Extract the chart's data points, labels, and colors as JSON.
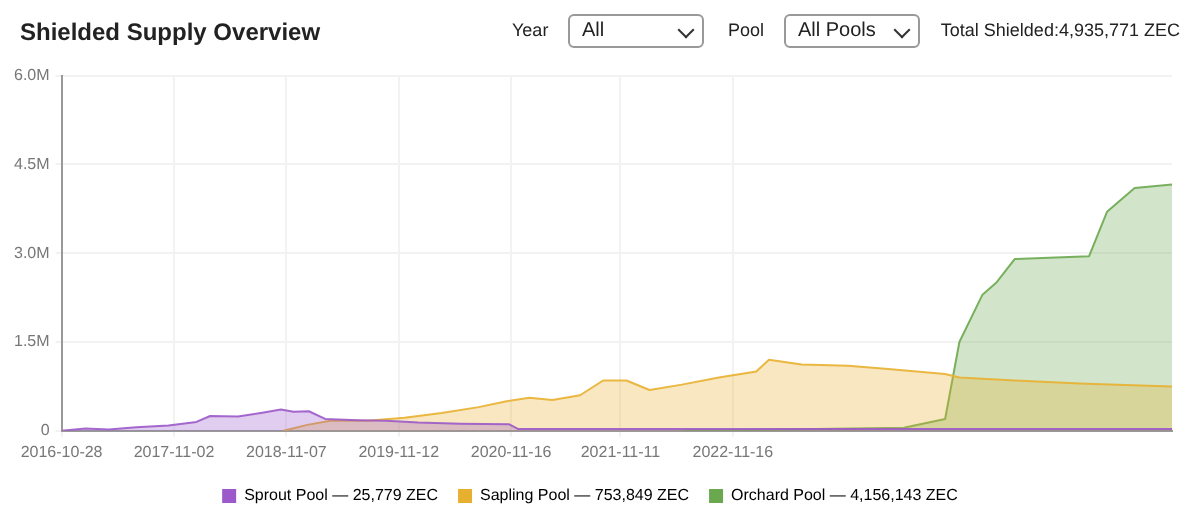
{
  "chart_data": {
    "type": "area",
    "title": "Shielded Supply Overview",
    "annotations": [
      "Year",
      "All",
      "Pool",
      "All Pools",
      "Total Shielded:4,935,771 ZEC"
    ],
    "xlim": [
      "2016-10-28",
      "2026-11-01"
    ],
    "xticks": [
      "2016-10-28",
      "2017-11-02",
      "2018-11-07",
      "2019-11-12",
      "2020-11-16",
      "2021-11-11",
      "2022-11-16"
    ],
    "ylim": [
      0,
      6000000
    ],
    "yticks": [
      0,
      {
        "value": 1500000,
        "label": "1.5M"
      },
      {
        "value": 3000000,
        "label": "3.0M"
      },
      {
        "value": 4500000,
        "label": "4.5M"
      },
      {
        "value": 6000000,
        "label": "6.0M"
      }
    ],
    "grid": true,
    "legend": "bottom",
    "marker": "none",
    "series": [
      {
        "name": "Sprout Pool — 25,779 ZEC",
        "color": "#9b59c9",
        "x": [
          "2016-10-28",
          "2017-01-15",
          "2017-04-01",
          "2017-07-01",
          "2017-10-15",
          "2018-01-15",
          "2018-03-01",
          "2018-06-01",
          "2018-08-15",
          "2018-10-20",
          "2018-12-01",
          "2019-01-20",
          "2019-03-15",
          "2019-07-01",
          "2019-10-01",
          "2020-01-15",
          "2020-06-01",
          "2020-11-10",
          "2020-12-10",
          "2022-06-01",
          "2026-11-01"
        ],
        "values": [
          0,
          40000,
          20000,
          60000,
          90000,
          150000,
          250000,
          240000,
          300000,
          360000,
          320000,
          330000,
          200000,
          180000,
          170000,
          140000,
          120000,
          110000,
          30000,
          30000,
          30000
        ]
      },
      {
        "name": "Sapling Pool — 753,849 ZEC",
        "color": "#e8b030",
        "x": [
          "2018-10-28",
          "2019-01-15",
          "2019-04-01",
          "2019-08-01",
          "2019-12-01",
          "2020-04-01",
          "2020-08-01",
          "2020-11-01",
          "2021-01-15",
          "2021-04-01",
          "2021-07-01",
          "2021-09-15",
          "2021-12-01",
          "2022-02-15",
          "2022-06-01",
          "2022-10-01",
          "2023-02-01",
          "2023-03-15",
          "2023-07-01",
          "2023-12-01",
          "2024-04-01",
          "2024-10-15",
          "2024-12-01",
          "2025-06-01",
          "2026-01-01",
          "2026-11-01"
        ],
        "values": [
          0,
          100000,
          170000,
          170000,
          220000,
          300000,
          400000,
          500000,
          560000,
          520000,
          600000,
          850000,
          850000,
          690000,
          780000,
          900000,
          1000000,
          1200000,
          1120000,
          1100000,
          1050000,
          960000,
          900000,
          850000,
          800000,
          750000
        ]
      },
      {
        "name": "Orchard Pool — 4,156,143 ZEC",
        "color": "#6aa84f",
        "x": [
          "2022-06-01",
          "2024-06-01",
          "2024-10-15",
          "2024-12-01",
          "2025-02-15",
          "2025-04-01",
          "2025-06-01",
          "2026-02-01",
          "2026-04-01",
          "2026-07-01",
          "2026-11-01"
        ],
        "values": [
          0,
          50000,
          200000,
          1500000,
          2300000,
          2500000,
          2900000,
          2950000,
          3700000,
          4100000,
          4160000
        ]
      }
    ]
  }
}
